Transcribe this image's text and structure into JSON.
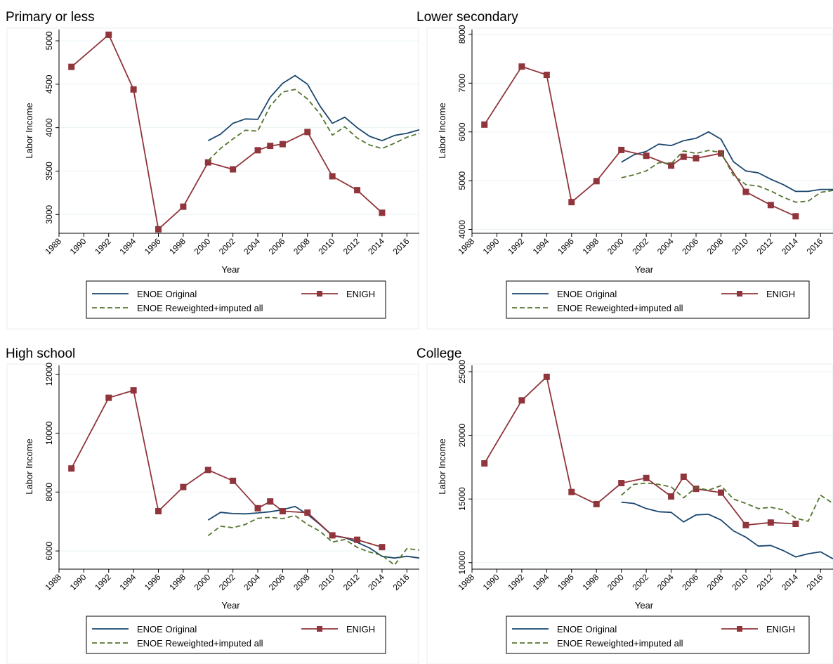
{
  "figure": {
    "background": "#ffffff",
    "legend_position": "bottom",
    "grid": true
  },
  "colors": {
    "enoe_original": "#1a476f",
    "enigh": "#90353b",
    "enoe_reweighted": "#55752f",
    "gridline": "#eaf2f3",
    "panel_border": "#e8eef0"
  },
  "legend_labels": {
    "enoe_original": "ENOE Original",
    "enigh": "ENIGH",
    "enoe_reweighted": "ENOE Reweighted+imputed all"
  },
  "chart_data": [
    {
      "type": "line",
      "title": "Primary or less",
      "xlabel": "Year",
      "ylabel": "Labor Income",
      "xlim": [
        1988,
        2017
      ],
      "ylim": [
        2800,
        5130
      ],
      "x_ticks": [
        "1988",
        "1990",
        "1992",
        "1994",
        "1996",
        "1998",
        "2000",
        "2002",
        "2004",
        "2006",
        "2008",
        "2010",
        "2012",
        "2014",
        "2016"
      ],
      "y_ticks": [
        "3000",
        "3500",
        "4000",
        "4500",
        "5000"
      ],
      "series": [
        {
          "key": "enoe_original",
          "name": "ENOE Original",
          "style": "solid",
          "markers": false,
          "x": [
            2000,
            2001,
            2002,
            2003,
            2004,
            2005,
            2006,
            2007,
            2008,
            2009,
            2010,
            2011,
            2012,
            2013,
            2014,
            2015,
            2016,
            2017
          ],
          "y": [
            3850,
            3925,
            4050,
            4100,
            4095,
            4350,
            4510,
            4600,
            4500,
            4250,
            4050,
            4120,
            4000,
            3900,
            3850,
            3910,
            3935,
            3975
          ]
        },
        {
          "key": "enigh",
          "name": "ENIGH",
          "style": "solid",
          "markers": true,
          "x": [
            1989,
            1992,
            1994,
            1996,
            1998,
            2000,
            2002,
            2004,
            2005,
            2006,
            2008,
            2010,
            2012,
            2014
          ],
          "y": [
            4700,
            5070,
            4440,
            2830,
            3090,
            3600,
            3520,
            3740,
            3790,
            3810,
            3950,
            3440,
            3280,
            3020
          ]
        },
        {
          "key": "enoe_reweighted",
          "name": "ENOE Reweighted+imputed all",
          "style": "dashed",
          "markers": false,
          "x": [
            2000,
            2001,
            2002,
            2003,
            2004,
            2005,
            2006,
            2007,
            2008,
            2009,
            2010,
            2011,
            2012,
            2013,
            2014,
            2015,
            2016,
            2017
          ],
          "y": [
            3620,
            3760,
            3870,
            3970,
            3960,
            4250,
            4410,
            4440,
            4330,
            4160,
            3915,
            4010,
            3880,
            3800,
            3760,
            3820,
            3890,
            3935
          ]
        }
      ]
    },
    {
      "type": "line",
      "title": "Lower secondary",
      "xlabel": "Year",
      "ylabel": "Labor Income",
      "xlim": [
        1988,
        2017
      ],
      "ylim": [
        3950,
        8100
      ],
      "x_ticks": [
        "1988",
        "1990",
        "1992",
        "1994",
        "1996",
        "1998",
        "2000",
        "2002",
        "2004",
        "2006",
        "2008",
        "2010",
        "2012",
        "2014",
        "2016"
      ],
      "y_ticks": [
        "4000",
        "5000",
        "6000",
        "7000",
        "8000"
      ],
      "series": [
        {
          "key": "enoe_original",
          "name": "ENOE Original",
          "style": "solid",
          "markers": false,
          "x": [
            2000,
            2001,
            2002,
            2003,
            2004,
            2005,
            2006,
            2007,
            2008,
            2009,
            2010,
            2011,
            2012,
            2013,
            2014,
            2015,
            2016,
            2017
          ],
          "y": [
            5380,
            5530,
            5600,
            5750,
            5720,
            5820,
            5870,
            6000,
            5850,
            5390,
            5200,
            5160,
            5030,
            4920,
            4780,
            4780,
            4820,
            4820
          ]
        },
        {
          "key": "enigh",
          "name": "ENIGH",
          "style": "solid",
          "markers": true,
          "x": [
            1989,
            1992,
            1994,
            1996,
            1998,
            2000,
            2002,
            2004,
            2005,
            2006,
            2008,
            2010,
            2012,
            2014
          ],
          "y": [
            6150,
            7340,
            7170,
            4560,
            4990,
            5630,
            5510,
            5310,
            5490,
            5460,
            5560,
            4770,
            4500,
            4270
          ]
        },
        {
          "key": "enoe_reweighted",
          "name": "ENOE Reweighted+imputed all",
          "style": "dashed",
          "markers": false,
          "x": [
            2000,
            2001,
            2002,
            2003,
            2004,
            2005,
            2006,
            2007,
            2008,
            2009,
            2010,
            2011,
            2012,
            2013,
            2014,
            2015,
            2016,
            2017
          ],
          "y": [
            5060,
            5120,
            5200,
            5370,
            5350,
            5610,
            5560,
            5620,
            5580,
            5110,
            4920,
            4890,
            4790,
            4660,
            4560,
            4580,
            4760,
            4800
          ]
        }
      ]
    },
    {
      "type": "line",
      "title": "High school",
      "xlabel": "Year",
      "ylabel": "Labor Income",
      "xlim": [
        1988,
        2017
      ],
      "ylim": [
        5430,
        12300
      ],
      "x_ticks": [
        "1988",
        "1990",
        "1992",
        "1994",
        "1996",
        "1998",
        "2000",
        "2002",
        "2004",
        "2006",
        "2008",
        "2010",
        "2012",
        "2014",
        "2016"
      ],
      "y_ticks": [
        "6000",
        "8000",
        "10000",
        "12000"
      ],
      "series": [
        {
          "key": "enoe_original",
          "name": "ENOE Original",
          "style": "solid",
          "markers": false,
          "x": [
            2000,
            2001,
            2002,
            2003,
            2004,
            2005,
            2006,
            2007,
            2008,
            2009,
            2010,
            2011,
            2012,
            2013,
            2014,
            2015,
            2016,
            2017
          ],
          "y": [
            7050,
            7310,
            7270,
            7260,
            7290,
            7330,
            7400,
            7510,
            7240,
            6900,
            6520,
            6450,
            6290,
            6100,
            5820,
            5760,
            5820,
            5760
          ]
        },
        {
          "key": "enigh",
          "name": "ENIGH",
          "style": "solid",
          "markers": true,
          "x": [
            1989,
            1992,
            1994,
            1996,
            1998,
            2000,
            2002,
            2004,
            2005,
            2006,
            2008,
            2010,
            2012,
            2014
          ],
          "y": [
            8800,
            11200,
            11450,
            7350,
            8170,
            8750,
            8380,
            7450,
            7680,
            7350,
            7300,
            6530,
            6380,
            6130
          ]
        },
        {
          "key": "enoe_reweighted",
          "name": "ENOE Reweighted+imputed all",
          "style": "dashed",
          "markers": false,
          "x": [
            2000,
            2001,
            2002,
            2003,
            2004,
            2005,
            2006,
            2007,
            2008,
            2009,
            2010,
            2011,
            2012,
            2013,
            2014,
            2015,
            2016,
            2017
          ],
          "y": [
            6520,
            6840,
            6790,
            6900,
            7110,
            7140,
            7100,
            7200,
            6900,
            6670,
            6300,
            6390,
            6120,
            5960,
            5850,
            5520,
            6080,
            6030
          ]
        }
      ]
    },
    {
      "type": "line",
      "title": "College",
      "xlabel": "Year",
      "ylabel": "Labor Income",
      "xlim": [
        1988,
        2017
      ],
      "ylim": [
        9600,
        25500
      ],
      "x_ticks": [
        "1988",
        "1990",
        "1992",
        "1994",
        "1996",
        "1998",
        "2000",
        "2002",
        "2004",
        "2006",
        "2008",
        "2010",
        "2012",
        "2014",
        "2016"
      ],
      "y_ticks": [
        "10000",
        "15000",
        "20000",
        "25000"
      ],
      "series": [
        {
          "key": "enoe_original",
          "name": "ENOE Original",
          "style": "solid",
          "markers": false,
          "x": [
            2000,
            2001,
            2002,
            2003,
            2004,
            2005,
            2006,
            2007,
            2008,
            2009,
            2010,
            2011,
            2012,
            2013,
            2014,
            2015,
            2016,
            2017
          ],
          "y": [
            14750,
            14650,
            14250,
            14000,
            13950,
            13200,
            13750,
            13800,
            13350,
            12500,
            12000,
            11300,
            11350,
            10950,
            10450,
            10700,
            10850,
            10300
          ]
        },
        {
          "key": "enigh",
          "name": "ENIGH",
          "style": "solid",
          "markers": true,
          "x": [
            1989,
            1992,
            1994,
            1996,
            1998,
            2000,
            2002,
            2004,
            2005,
            2006,
            2008,
            2010,
            2012,
            2014
          ],
          "y": [
            17800,
            22750,
            24600,
            15550,
            14600,
            16250,
            16650,
            15200,
            16750,
            15800,
            15500,
            12950,
            13150,
            13050
          ]
        },
        {
          "key": "enoe_reweighted",
          "name": "ENOE Reweighted+imputed all",
          "style": "dashed",
          "markers": false,
          "x": [
            2000,
            2001,
            2002,
            2003,
            2004,
            2005,
            2006,
            2007,
            2008,
            2009,
            2010,
            2011,
            2012,
            2013,
            2014,
            2015,
            2016,
            2017
          ],
          "y": [
            15300,
            16150,
            16250,
            16150,
            15950,
            15100,
            15900,
            15700,
            16050,
            15000,
            14650,
            14250,
            14350,
            14150,
            13500,
            13250,
            15300,
            14650
          ]
        }
      ]
    }
  ]
}
